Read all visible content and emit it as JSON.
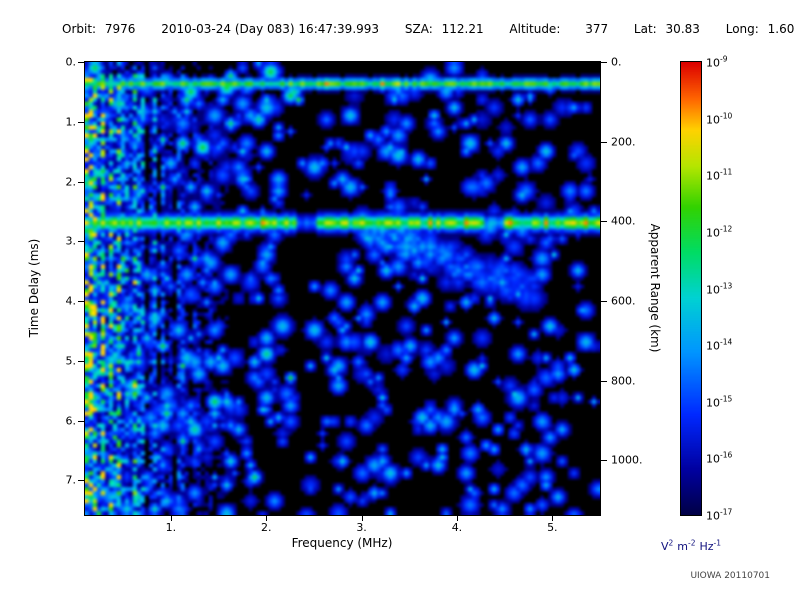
{
  "header": {
    "orbit_label": "Orbit:",
    "orbit": "7976",
    "datetime": "2010-03-24 (Day 083) 16:47:39.993",
    "sza_label": "SZA:",
    "sza": "112.21",
    "altitude_label": "Altitude:",
    "altitude": "377",
    "lat_label": "Lat:",
    "lat": "30.83",
    "long_label": "Long:",
    "long": "1.60"
  },
  "watermark": "UIOWA 20110701",
  "chart_data": {
    "type": "heatmap",
    "xlabel": "Frequency (MHz)",
    "x_range": [
      0.1,
      5.5
    ],
    "x_ticks": [
      {
        "v": 1,
        "label": "1."
      },
      {
        "v": 2,
        "label": "2."
      },
      {
        "v": 3,
        "label": "3."
      },
      {
        "v": 4,
        "label": "4."
      },
      {
        "v": 5,
        "label": "5."
      }
    ],
    "ylabel": "Time Delay (ms)",
    "y_range": [
      0,
      7.58
    ],
    "y_ticks": [
      {
        "v": 0,
        "label": "0."
      },
      {
        "v": 1,
        "label": "1."
      },
      {
        "v": 2,
        "label": "2."
      },
      {
        "v": 3,
        "label": "3."
      },
      {
        "v": 4,
        "label": "4."
      },
      {
        "v": 5,
        "label": "5."
      },
      {
        "v": 6,
        "label": "6."
      },
      {
        "v": 7,
        "label": "7."
      }
    ],
    "y2label": "Apparent Range (km)",
    "range_km_per_ms": 150,
    "y2_ticks": [
      {
        "km": 0,
        "label": "0."
      },
      {
        "km": 200,
        "label": "200."
      },
      {
        "km": 400,
        "label": "400."
      },
      {
        "km": 600,
        "label": "600."
      },
      {
        "km": 800,
        "label": "800."
      },
      {
        "km": 1000,
        "label": "1000."
      }
    ],
    "colorbar": {
      "tick_base": "10",
      "tick_exponents": [
        "-9",
        "-10",
        "-11",
        "-12",
        "-13",
        "-14",
        "-15",
        "-16",
        "-17"
      ],
      "units": [
        {
          "base": "V",
          "exp": "2"
        },
        {
          "base": "m",
          "exp": "-2"
        },
        {
          "base": "Hz",
          "exp": "-1"
        }
      ]
    },
    "colormap_stops": [
      [
        0.0,
        "#000046"
      ],
      [
        0.1,
        "#0000a0"
      ],
      [
        0.22,
        "#0028ff"
      ],
      [
        0.36,
        "#0096ff"
      ],
      [
        0.48,
        "#00d2d2"
      ],
      [
        0.58,
        "#00dc64"
      ],
      [
        0.68,
        "#32d200"
      ],
      [
        0.77,
        "#b4e600"
      ],
      [
        0.85,
        "#ffd200"
      ],
      [
        0.92,
        "#ff6400"
      ],
      [
        1.0,
        "#dc0000"
      ]
    ],
    "features": {
      "seed": 7976,
      "bands": [
        {
          "t_ms": 0.36,
          "sigma_ms": 0.06,
          "amp": 0.62,
          "desc": "bright green echo band across all frequencies near 0.35 ms delay"
        },
        {
          "t_ms": 2.65,
          "sigma_ms": 0.09,
          "amp": 0.68,
          "desc": "surface reflection echo across all frequencies at ~400 km apparent range",
          "gaps": [
            {
              "f": 2.42,
              "w": 0.12,
              "mul": 0.4
            },
            {
              "f": 4.4,
              "w": 0.1,
              "mul": 0.55
            }
          ]
        }
      ],
      "vstreaks": {
        "f_max": 1.8,
        "desc": "dense vertical green/cyan noise streaks, strongest below ~1 MHz, full delay range"
      },
      "speckle_regions": [
        {
          "f0": 0.1,
          "f1": 2.25,
          "p": 0.55
        },
        {
          "f0": 2.25,
          "f1": 2.55,
          "p": 0.15
        },
        {
          "f0": 2.55,
          "f1": 3.4,
          "p": 0.5
        },
        {
          "f0": 3.4,
          "f1": 4.7,
          "p": 0.45
        },
        {
          "f0": 4.7,
          "f1": 5.5,
          "p": 0.3
        }
      ],
      "wedge": {
        "f0": 3.0,
        "f1": 4.8,
        "t0": 2.7,
        "t1": 3.7,
        "desc": "diffuse oblique echo trailing down-right below the surface reflection band"
      }
    }
  }
}
